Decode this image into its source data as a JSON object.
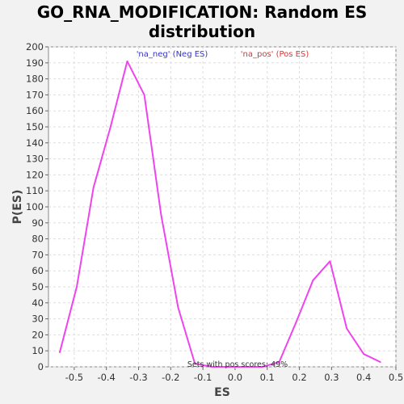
{
  "chart_data": {
    "type": "line",
    "title": "GO_RNA_MODIFICATION: Random ES distribution",
    "title_line1": "GO_RNA_MODIFICATION: Random ES",
    "title_line2": "distribution",
    "xlabel": "ES",
    "ylabel": "P(ES)",
    "xlim": [
      -0.58,
      0.5
    ],
    "ylim": [
      0,
      200
    ],
    "x_ticks": [
      -0.5,
      -0.4,
      -0.3,
      -0.2,
      -0.1,
      0.0,
      0.1,
      0.2,
      0.3,
      0.4,
      0.5
    ],
    "x_tick_labels": [
      "-0.5",
      "-0.4",
      "-0.3",
      "-0.2",
      "-0.1",
      "0.0",
      "0.1",
      "0.2",
      "0.3",
      "0.4",
      "0.5"
    ],
    "y_ticks": [
      0,
      10,
      20,
      30,
      40,
      50,
      60,
      70,
      80,
      90,
      100,
      110,
      120,
      130,
      140,
      150,
      160,
      170,
      180,
      190,
      200
    ],
    "grid": true,
    "legend": [
      {
        "label": "'na_neg' (Neg ES)",
        "color": "#3333cc"
      },
      {
        "label": "'na_pos' (Pos ES)",
        "color": "#dd3333"
      }
    ],
    "legend_placement": "top",
    "series": [
      {
        "color": "#ee44ee",
        "x": [
          -0.545,
          -0.492,
          -0.44,
          -0.387,
          -0.335,
          -0.282,
          -0.23,
          -0.177,
          -0.125,
          -0.072,
          -0.02,
          0.033,
          0.085,
          0.137,
          0.19,
          0.242,
          0.295,
          0.347,
          0.4,
          0.452
        ],
        "y": [
          9,
          50,
          112,
          150,
          191,
          170,
          95,
          37,
          2,
          0,
          0,
          0,
          0,
          3,
          28,
          54,
          66,
          24,
          8,
          3
        ]
      }
    ],
    "annotation": "Sets with pos scores: 49%"
  }
}
